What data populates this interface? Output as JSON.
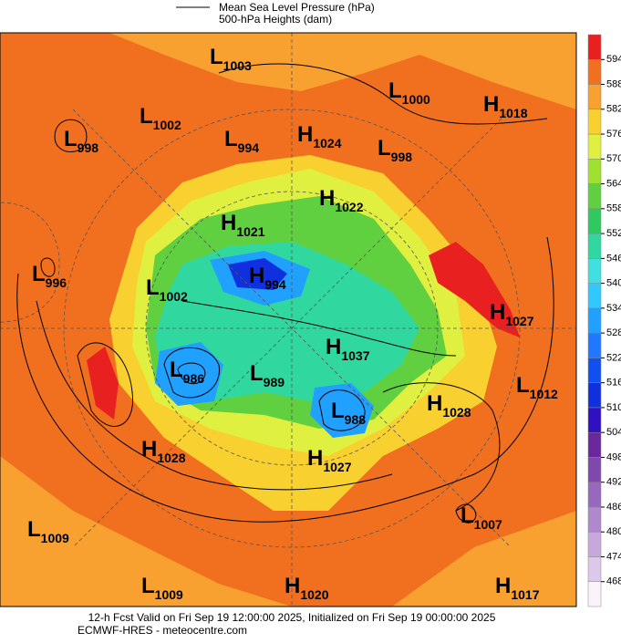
{
  "legend": {
    "line_label": "Mean Sea Level Pressure (hPa)",
    "fill_label": "500-hPa Heights (dam)"
  },
  "centers": [
    {
      "letter": "L",
      "value": "1003"
    },
    {
      "letter": "L",
      "value": "1002"
    },
    {
      "letter": "L",
      "value": "998"
    },
    {
      "letter": "L",
      "value": "994"
    },
    {
      "letter": "H",
      "value": "1024"
    },
    {
      "letter": "L",
      "value": "998"
    },
    {
      "letter": "L",
      "value": "1000"
    },
    {
      "letter": "H",
      "value": "1018"
    },
    {
      "letter": "H",
      "value": "1022"
    },
    {
      "letter": "H",
      "value": "1021"
    },
    {
      "letter": "L",
      "value": "996"
    },
    {
      "letter": "L",
      "value": "1002"
    },
    {
      "letter": "H",
      "value": "994"
    },
    {
      "letter": "H",
      "value": "1027"
    },
    {
      "letter": "H",
      "value": "1037"
    },
    {
      "letter": "L",
      "value": "986"
    },
    {
      "letter": "L",
      "value": "989"
    },
    {
      "letter": "L",
      "value": "1012"
    },
    {
      "letter": "H",
      "value": "1028"
    },
    {
      "letter": "L",
      "value": "988"
    },
    {
      "letter": "H",
      "value": "1028"
    },
    {
      "letter": "H",
      "value": "1027"
    },
    {
      "letter": "L",
      "value": "1007"
    },
    {
      "letter": "L",
      "value": "1009"
    },
    {
      "letter": "L",
      "value": "1009"
    },
    {
      "letter": "H",
      "value": "1020"
    },
    {
      "letter": "H",
      "value": "1017"
    }
  ],
  "colorbar": {
    "ticks": [
      468,
      474,
      480,
      486,
      492,
      498,
      504,
      510,
      516,
      522,
      528,
      534,
      540,
      546,
      552,
      558,
      564,
      570,
      576,
      582,
      588,
      594
    ],
    "colors": [
      "#faf4fa",
      "#dcc8e8",
      "#c8a8dc",
      "#b088cc",
      "#9868bc",
      "#8048ac",
      "#6a289c",
      "#3010c0",
      "#1030e0",
      "#1050f0",
      "#2078ff",
      "#20a0ff",
      "#30c8ff",
      "#40e0e0",
      "#30d8a0",
      "#30c860",
      "#60d040",
      "#a0e030",
      "#e0f040",
      "#f8d030",
      "#f8a030",
      "#f07020",
      "#e82020"
    ]
  },
  "footer": {
    "line1": "12-h Fcst Valid on Fri Sep 19 12:00:00 2025, Initialized on Fri Sep 19 00:00:00 2025",
    "line2": "ECMWF-HRES  - meteocentre.com"
  }
}
